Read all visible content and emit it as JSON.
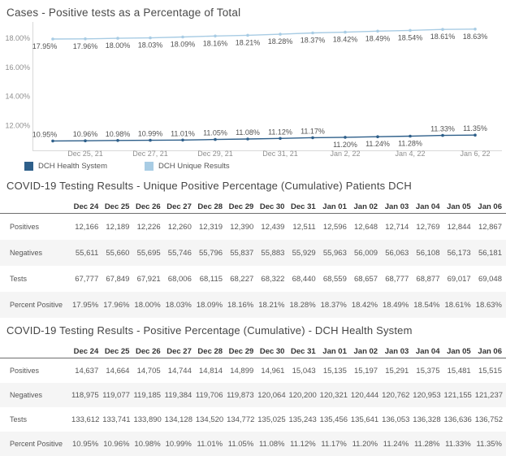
{
  "colors": {
    "band": "#f5f5f5",
    "axis_line": "#d9d9d9",
    "data_label": "#525252",
    "tick_label": "#8f8f8f",
    "series_dark": "#2e5f8a",
    "series_light": "#a8cce4"
  },
  "chart_data": [
    {
      "type": "line",
      "title": "Cases - Positive tests as a Percentage of Total",
      "x": [
        "Dec 24",
        "Dec 25",
        "Dec 26",
        "Dec 27",
        "Dec 28",
        "Dec 29",
        "Dec 30",
        "Dec 31",
        "Jan 01",
        "Jan 02",
        "Jan 03",
        "Jan 04",
        "Jan 05",
        "Jan 06"
      ],
      "x_axis": {
        "tick_indices": [
          1,
          3,
          5,
          7,
          9,
          11,
          13
        ],
        "tick_labels": [
          "Dec 25, 21",
          "Dec 27, 21",
          "Dec 29, 21",
          "Dec 31, 21",
          "Jan 2, 22",
          "Jan 4, 22",
          "Jan 6, 22"
        ]
      },
      "y_axis": {
        "ticks": [
          {
            "value": 18.0,
            "label": "18.00%"
          },
          {
            "value": 16.0,
            "label": "16.00%"
          },
          {
            "value": 14.0,
            "label": "14.00%"
          },
          {
            "value": 12.0,
            "label": "12.00%"
          }
        ]
      },
      "ylim": [
        10.3,
        18.9
      ],
      "grid": false,
      "legend_position": "bottom",
      "series": [
        {
          "name": "DCH Health System",
          "color": "#2e5f8a",
          "values": [
            10.95,
            10.96,
            10.98,
            10.99,
            11.01,
            11.05,
            11.08,
            11.12,
            11.17,
            11.2,
            11.24,
            11.28,
            11.33,
            11.35
          ],
          "labels": [
            "10.95%",
            "10.96%",
            "10.98%",
            "10.99%",
            "11.01%",
            "11.05%",
            "11.08%",
            "11.12%",
            "11.17%",
            "11.20%",
            "11.24%",
            "11.28%",
            "11.33%",
            "11.35%"
          ],
          "label_pos": [
            "above-left",
            "above",
            "above",
            "above",
            "above",
            "above",
            "above",
            "above",
            "above",
            "below",
            "below",
            "below",
            "above",
            "above"
          ]
        },
        {
          "name": "DCH Unique Results",
          "color": "#a8cce4",
          "values": [
            17.95,
            17.96,
            18.0,
            18.03,
            18.09,
            18.16,
            18.21,
            18.28,
            18.37,
            18.42,
            18.49,
            18.54,
            18.61,
            18.63
          ],
          "labels": [
            "17.95%",
            "17.96%",
            "18.00%",
            "18.03%",
            "18.09%",
            "18.16%",
            "18.21%",
            "18.28%",
            "18.37%",
            "18.42%",
            "18.49%",
            "18.54%",
            "18.61%",
            "18.63%"
          ],
          "label_pos": [
            "below-left",
            "below",
            "below",
            "below",
            "below",
            "below",
            "below",
            "below",
            "below",
            "below",
            "below",
            "below",
            "below",
            "below"
          ]
        }
      ]
    },
    {
      "type": "table",
      "title": "COVID-19 Testing Results - Unique Positive Percentage (Cumulative) Patients DCH",
      "columns": [
        "Dec 24",
        "Dec 25",
        "Dec 26",
        "Dec 27",
        "Dec 28",
        "Dec 29",
        "Dec 30",
        "Dec 31",
        "Jan 01",
        "Jan 02",
        "Jan 03",
        "Jan 04",
        "Jan 05",
        "Jan 06"
      ],
      "rows": [
        {
          "label": "Positives",
          "values": [
            "12,166",
            "12,189",
            "12,226",
            "12,260",
            "12,319",
            "12,390",
            "12,439",
            "12,511",
            "12,596",
            "12,648",
            "12,714",
            "12,769",
            "12,844",
            "12,867"
          ]
        },
        {
          "label": "Negatives",
          "values": [
            "55,611",
            "55,660",
            "55,695",
            "55,746",
            "55,796",
            "55,837",
            "55,883",
            "55,929",
            "55,963",
            "56,009",
            "56,063",
            "56,108",
            "56,173",
            "56,181"
          ]
        },
        {
          "label": "Tests",
          "values": [
            "67,777",
            "67,849",
            "67,921",
            "68,006",
            "68,115",
            "68,227",
            "68,322",
            "68,440",
            "68,559",
            "68,657",
            "68,777",
            "68,877",
            "69,017",
            "69,048"
          ]
        },
        {
          "label": "Percent Positive",
          "values": [
            "17.95%",
            "17.96%",
            "18.00%",
            "18.03%",
            "18.09%",
            "18.16%",
            "18.21%",
            "18.28%",
            "18.37%",
            "18.42%",
            "18.49%",
            "18.54%",
            "18.61%",
            "18.63%"
          ]
        }
      ]
    },
    {
      "type": "table",
      "title": "COVID-19 Testing Results - Positive Percentage (Cumulative) - DCH Health System",
      "columns": [
        "Dec 24",
        "Dec 25",
        "Dec 26",
        "Dec 27",
        "Dec 28",
        "Dec 29",
        "Dec 30",
        "Dec 31",
        "Jan 01",
        "Jan 02",
        "Jan 03",
        "Jan 04",
        "Jan 05",
        "Jan 06"
      ],
      "rows": [
        {
          "label": "Positives",
          "values": [
            "14,637",
            "14,664",
            "14,705",
            "14,744",
            "14,814",
            "14,899",
            "14,961",
            "15,043",
            "15,135",
            "15,197",
            "15,291",
            "15,375",
            "15,481",
            "15,515"
          ]
        },
        {
          "label": "Negatives",
          "values": [
            "118,975",
            "119,077",
            "119,185",
            "119,384",
            "119,706",
            "119,873",
            "120,064",
            "120,200",
            "120,321",
            "120,444",
            "120,762",
            "120,953",
            "121,155",
            "121,237"
          ]
        },
        {
          "label": "Tests",
          "values": [
            "133,612",
            "133,741",
            "133,890",
            "134,128",
            "134,520",
            "134,772",
            "135,025",
            "135,243",
            "135,456",
            "135,641",
            "136,053",
            "136,328",
            "136,636",
            "136,752"
          ]
        },
        {
          "label": "Percent Positive",
          "values": [
            "10.95%",
            "10.96%",
            "10.98%",
            "10.99%",
            "11.01%",
            "11.05%",
            "11.08%",
            "11.12%",
            "11.17%",
            "11.20%",
            "11.24%",
            "11.28%",
            "11.33%",
            "11.35%"
          ]
        }
      ]
    }
  ]
}
